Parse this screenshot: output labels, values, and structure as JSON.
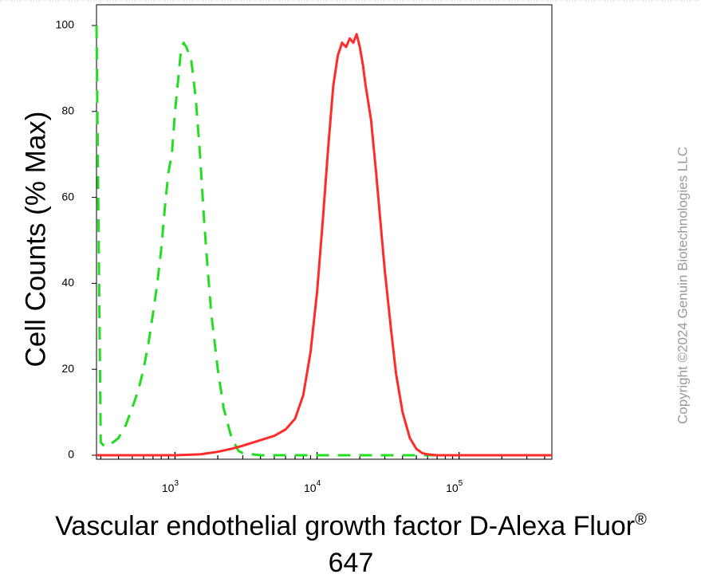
{
  "chart_data": {
    "type": "line",
    "title": "",
    "xlabel_line1": "Vascular endothelial growth factor D-Alexa Fluor",
    "xlabel_reg": "®",
    "xlabel_line2": "647",
    "ylabel": "Cell Counts (% Max)",
    "x_scale": "log",
    "xlim": [
      280,
      450000
    ],
    "ylim": [
      0,
      105
    ],
    "x_ticks": [
      {
        "value": 1000,
        "base": "10",
        "exp": "3"
      },
      {
        "value": 10000,
        "base": "10",
        "exp": "4"
      },
      {
        "value": 100000,
        "base": "10",
        "exp": "5"
      }
    ],
    "y_ticks": [
      {
        "value": 0,
        "label": "0"
      },
      {
        "value": 20,
        "label": "20"
      },
      {
        "value": 40,
        "label": "40"
      },
      {
        "value": 60,
        "label": "60"
      },
      {
        "value": 80,
        "label": "80"
      },
      {
        "value": 100,
        "label": "100"
      }
    ],
    "grid": false,
    "legend": "none",
    "series": [
      {
        "style": "dashed",
        "color": "#22dd22",
        "x": [
          280,
          300,
          320,
          350,
          400,
          450,
          500,
          550,
          600,
          650,
          700,
          750,
          800,
          850,
          900,
          950,
          1000,
          1050,
          1100,
          1150,
          1200,
          1300,
          1400,
          1500,
          1600,
          1700,
          1800,
          2000,
          2200,
          2500,
          2800,
          3000,
          3500,
          4000,
          6000,
          10000,
          20000,
          100000,
          450000
        ],
        "y": [
          100,
          3,
          2,
          2.5,
          4,
          7,
          11,
          15,
          20,
          26,
          33,
          40,
          48,
          58,
          66,
          70,
          80,
          87,
          94,
          96,
          95,
          92,
          83,
          70,
          55,
          43,
          33,
          20,
          11,
          4,
          1,
          0.5,
          0.2,
          0,
          0,
          0,
          0,
          0,
          0
        ]
      },
      {
        "style": "solid",
        "color": "#ff2a2a",
        "x": [
          280,
          1000,
          1500,
          2000,
          2500,
          3000,
          4000,
          5000,
          6000,
          7000,
          8000,
          9000,
          10000,
          11000,
          12000,
          13000,
          14000,
          15000,
          16000,
          17000,
          18000,
          19000,
          20000,
          21000,
          22000,
          24000,
          26000,
          28000,
          30000,
          33000,
          36000,
          40000,
          45000,
          50000,
          55000,
          60000,
          70000,
          80000,
          100000,
          450000
        ],
        "y": [
          0,
          0,
          0.2,
          0.8,
          1.5,
          2.2,
          3.5,
          4.5,
          6,
          8.5,
          14,
          24,
          38,
          55,
          72,
          86,
          93,
          96,
          95,
          97,
          96,
          98,
          95,
          91,
          86,
          78,
          66,
          54,
          43,
          30,
          19,
          10,
          4,
          1.5,
          0.5,
          0.2,
          0,
          0,
          0,
          0
        ]
      }
    ]
  },
  "watermark": "Copyright ©2024 Genuin Biotechnologies LLC"
}
